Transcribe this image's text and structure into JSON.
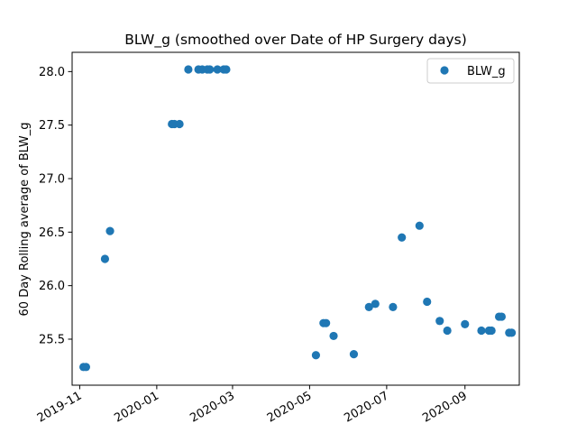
{
  "chart_data": {
    "type": "scatter",
    "title": "BLW_g (smoothed over Date of HP Surgery days)",
    "xlabel": "",
    "ylabel": "60 Day Rolling average of BLW_g",
    "x_ticks": [
      "2019-11-01",
      "2020-01-01",
      "2020-03-01",
      "2020-05-01",
      "2020-07-01",
      "2020-09-01"
    ],
    "x_tick_labels": [
      "2019-11",
      "2020-01",
      "2020-03",
      "2020-05",
      "2020-07",
      "2020-09"
    ],
    "y_ticks": [
      25.5,
      26.0,
      26.5,
      27.0,
      27.5,
      28.0
    ],
    "y_tick_labels": [
      "25.5",
      "26.0",
      "26.5",
      "27.0",
      "27.5",
      "28.0"
    ],
    "xlim": [
      "2019-10-26",
      "2020-10-14"
    ],
    "ylim": [
      25.07,
      28.18
    ],
    "grid": false,
    "legend_position": "top-right",
    "series": [
      {
        "name": "BLW_g",
        "color": "#1f77b4",
        "points": [
          {
            "x": "2019-11-04",
            "y": 25.24
          },
          {
            "x": "2019-11-06",
            "y": 25.24
          },
          {
            "x": "2019-11-21",
            "y": 26.25
          },
          {
            "x": "2019-11-25",
            "y": 26.51
          },
          {
            "x": "2020-01-13",
            "y": 27.51
          },
          {
            "x": "2020-01-15",
            "y": 27.51
          },
          {
            "x": "2020-01-19",
            "y": 27.51
          },
          {
            "x": "2020-01-26",
            "y": 28.02
          },
          {
            "x": "2020-02-03",
            "y": 28.02
          },
          {
            "x": "2020-02-06",
            "y": 28.02
          },
          {
            "x": "2020-02-10",
            "y": 28.02
          },
          {
            "x": "2020-02-12",
            "y": 28.02
          },
          {
            "x": "2020-02-18",
            "y": 28.02
          },
          {
            "x": "2020-02-23",
            "y": 28.02
          },
          {
            "x": "2020-02-25",
            "y": 28.02
          },
          {
            "x": "2020-05-06",
            "y": 25.35
          },
          {
            "x": "2020-05-12",
            "y": 25.65
          },
          {
            "x": "2020-05-14",
            "y": 25.65
          },
          {
            "x": "2020-05-20",
            "y": 25.53
          },
          {
            "x": "2020-06-05",
            "y": 25.36
          },
          {
            "x": "2020-06-17",
            "y": 25.8
          },
          {
            "x": "2020-06-22",
            "y": 25.83
          },
          {
            "x": "2020-07-06",
            "y": 25.8
          },
          {
            "x": "2020-07-13",
            "y": 26.45
          },
          {
            "x": "2020-07-27",
            "y": 26.56
          },
          {
            "x": "2020-08-02",
            "y": 25.85
          },
          {
            "x": "2020-08-12",
            "y": 25.67
          },
          {
            "x": "2020-08-18",
            "y": 25.58
          },
          {
            "x": "2020-09-01",
            "y": 25.64
          },
          {
            "x": "2020-09-14",
            "y": 25.58
          },
          {
            "x": "2020-09-20",
            "y": 25.58
          },
          {
            "x": "2020-09-22",
            "y": 25.58
          },
          {
            "x": "2020-09-28",
            "y": 25.71
          },
          {
            "x": "2020-09-30",
            "y": 25.71
          },
          {
            "x": "2020-10-06",
            "y": 25.56
          },
          {
            "x": "2020-10-08",
            "y": 25.56
          }
        ]
      }
    ]
  }
}
